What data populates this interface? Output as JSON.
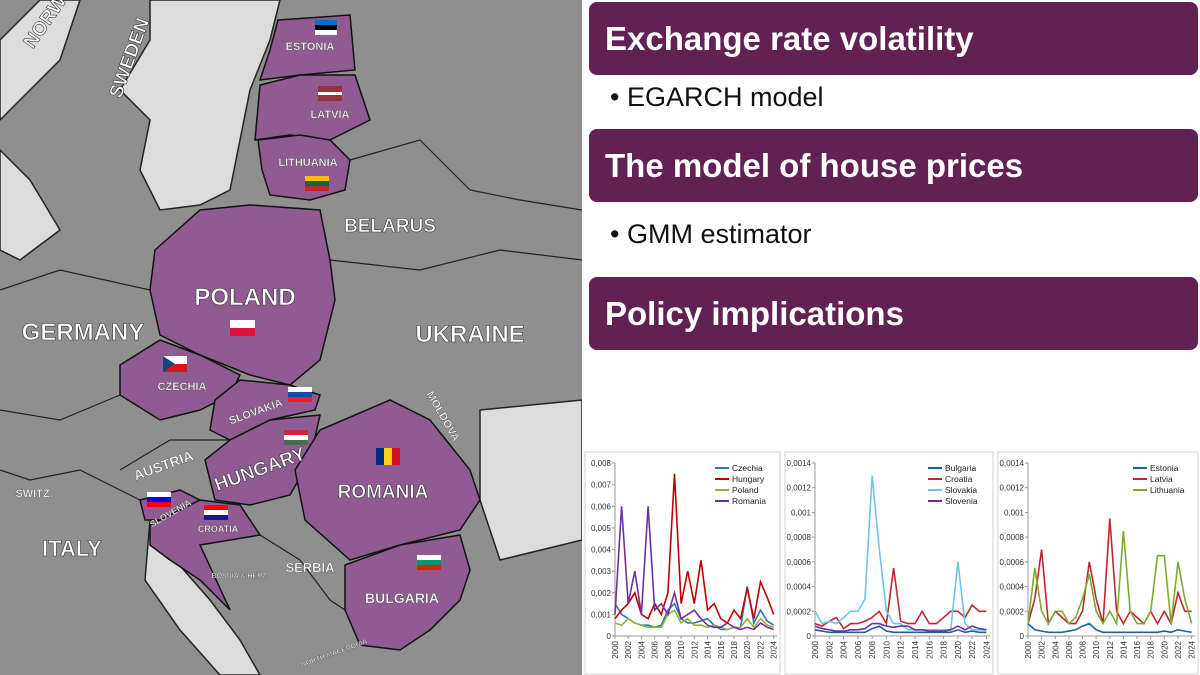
{
  "slide": {
    "sections": [
      {
        "heading": "Exchange rate volatility",
        "bullet": "EGARCH model"
      },
      {
        "heading": "The model of house prices",
        "bullet": "GMM estimator"
      },
      {
        "heading": "Policy implications"
      }
    ]
  },
  "map": {
    "labels": [
      "NORW",
      "SWEDEN",
      "ESTONIA",
      "LATVIA",
      "LITHUANIA",
      "BELARUS",
      "POLAND",
      "GERMANY",
      "UKRAINE",
      "CZECHIA",
      "SLOVAKIA",
      "AUSTRIA",
      "HUNGARY",
      "ROMANIA",
      "MOLDOVA",
      "SWITZ.",
      "SLOVENIA",
      "CROATIA",
      "ITALY",
      "SERBIA",
      "BULGARIA",
      "BOSNIA & HERZ.",
      "NORTH MACEDONIA"
    ]
  },
  "chart_data": [
    {
      "type": "line",
      "x": [
        2000,
        2001,
        2002,
        2003,
        2004,
        2005,
        2006,
        2007,
        2008,
        2009,
        2010,
        2011,
        2012,
        2013,
        2014,
        2015,
        2016,
        2017,
        2018,
        2019,
        2020,
        2021,
        2022,
        2023,
        2024
      ],
      "xlim": [
        2000,
        2024.5
      ],
      "xticks": [
        2000,
        2002,
        2004,
        2006,
        2008,
        2010,
        2012,
        2014,
        2016,
        2018,
        2020,
        2022,
        2024
      ],
      "ylim": [
        0,
        0.008
      ],
      "yticks": [
        0,
        {
          "value": 0.001,
          "label": "0,001"
        },
        {
          "value": 0.002,
          "label": "0,002"
        },
        {
          "value": 0.003,
          "label": "0,003"
        },
        {
          "value": 0.004,
          "label": "0,004"
        },
        {
          "value": 0.005,
          "label": "0,005"
        },
        {
          "value": 0.006,
          "label": "0,006"
        },
        {
          "value": 0.007,
          "label": "0,007"
        },
        {
          "value": 0.008,
          "label": "0,008"
        }
      ],
      "series": [
        {
          "name": "Czechia",
          "color": "#2e75b6",
          "values": [
            0.0015,
            0.001,
            0.0008,
            0.0006,
            0.0005,
            0.0005,
            0.0004,
            0.0005,
            0.0012,
            0.0015,
            0.0008,
            0.0006,
            0.0006,
            0.0007,
            0.0008,
            0.0005,
            0.0003,
            0.0003,
            0.0004,
            0.0004,
            0.0023,
            0.0006,
            0.0012,
            0.0007,
            0.0005
          ]
        },
        {
          "name": "Hungary",
          "color": "#c00000",
          "values": [
            0.0008,
            0.0012,
            0.0015,
            0.002,
            0.001,
            0.0008,
            0.0015,
            0.001,
            0.002,
            0.0075,
            0.0015,
            0.003,
            0.0015,
            0.0035,
            0.0012,
            0.0015,
            0.0008,
            0.0006,
            0.0012,
            0.0008,
            0.0022,
            0.0008,
            0.0025,
            0.0018,
            0.001
          ]
        },
        {
          "name": "Poland",
          "color": "#8fb339",
          "values": [
            0.0006,
            0.0005,
            0.0008,
            0.0006,
            0.0005,
            0.0004,
            0.0004,
            0.0004,
            0.001,
            0.0012,
            0.0006,
            0.0008,
            0.0005,
            0.0005,
            0.0004,
            0.0005,
            0.0004,
            0.0003,
            0.0004,
            0.0004,
            0.0008,
            0.0004,
            0.0008,
            0.0005,
            0.0004
          ]
        },
        {
          "name": "Romania",
          "color": "#7030a0",
          "values": [
            0.001,
            0.006,
            0.0015,
            0.003,
            0.001,
            0.006,
            0.0012,
            0.0015,
            0.001,
            0.002,
            0.0008,
            0.001,
            0.0012,
            0.0008,
            0.0005,
            0.0004,
            0.0004,
            0.0006,
            0.0004,
            0.0003,
            0.0004,
            0.0003,
            0.0006,
            0.0004,
            0.0003
          ]
        }
      ]
    },
    {
      "type": "line",
      "x": [
        2000,
        2001,
        2002,
        2003,
        2004,
        2005,
        2006,
        2007,
        2008,
        2009,
        2010,
        2011,
        2012,
        2013,
        2014,
        2015,
        2016,
        2017,
        2018,
        2019,
        2020,
        2021,
        2022,
        2023,
        2024
      ],
      "xlim": [
        2000,
        2024.5
      ],
      "xticks": [
        2000,
        2002,
        2004,
        2006,
        2008,
        2010,
        2012,
        2014,
        2016,
        2018,
        2020,
        2022,
        2024
      ],
      "ylim": [
        0,
        0.0014
      ],
      "yticks": [
        0,
        {
          "value": 0.0002,
          "label": "0,0002"
        },
        {
          "value": 0.0004,
          "label": "0,0004"
        },
        {
          "value": 0.0006,
          "label": "0,0006"
        },
        {
          "value": 0.0008,
          "label": "0,0008"
        },
        {
          "value": 0.001,
          "label": "0,001"
        },
        {
          "value": 0.0012,
          "label": "0,0012"
        },
        {
          "value": 0.0014,
          "label": "0,0014"
        }
      ],
      "series": [
        {
          "name": "Bulgaria",
          "color": "#1f5fa8",
          "values": [
            5e-05,
            4e-05,
            3e-05,
            3e-05,
            3e-05,
            3e-05,
            3e-05,
            3e-05,
            6e-05,
            8e-05,
            4e-05,
            3e-05,
            3e-05,
            3e-05,
            3e-05,
            3e-05,
            3e-05,
            3e-05,
            3e-05,
            3e-05,
            5e-05,
            3e-05,
            4e-05,
            3e-05,
            3e-05
          ]
        },
        {
          "name": "Croatia",
          "color": "#c0282d",
          "values": [
            0.0001,
            8e-05,
            0.00012,
            0.00015,
            6e-05,
            0.0001,
            0.0001,
            0.00012,
            0.00015,
            0.0002,
            0.0001,
            0.00055,
            0.00012,
            0.0001,
            0.0001,
            0.0002,
            0.0001,
            0.0001,
            0.00015,
            0.0002,
            0.0002,
            0.00015,
            0.00025,
            0.0002,
            0.0002
          ]
        },
        {
          "name": "Slovakia",
          "color": "#6ec6e8",
          "values": [
            0.0002,
            0.0001,
            0.00012,
            0.0001,
            0.00015,
            0.0002,
            0.0002,
            0.0003,
            0.0013,
            0.0007,
            0.0002,
            0.0001,
            0.0001,
            5e-05,
            5e-05,
            5e-05,
            5e-05,
            5e-05,
            5e-05,
            5e-05,
            0.0006,
            0.0001,
            5e-05,
            5e-05,
            5e-05
          ]
        },
        {
          "name": "Slovenia",
          "color": "#7030a0",
          "values": [
            8e-05,
            6e-05,
            5e-05,
            4e-05,
            4e-05,
            5e-05,
            5e-05,
            6e-05,
            0.0001,
            0.0001,
            8e-05,
            7e-05,
            8e-05,
            8e-05,
            5e-05,
            5e-05,
            4e-05,
            4e-05,
            4e-05,
            5e-05,
            8e-05,
            5e-05,
            8e-05,
            6e-05,
            5e-05
          ]
        }
      ]
    },
    {
      "type": "line",
      "x": [
        2000,
        2001,
        2002,
        2003,
        2004,
        2005,
        2006,
        2007,
        2008,
        2009,
        2010,
        2011,
        2012,
        2013,
        2014,
        2015,
        2016,
        2017,
        2018,
        2019,
        2020,
        2021,
        2022,
        2023,
        2024
      ],
      "xlim": [
        2000,
        2024.5
      ],
      "xticks": [
        2000,
        2002,
        2004,
        2006,
        2008,
        2010,
        2012,
        2014,
        2016,
        2018,
        2020,
        2022,
        2024
      ],
      "ylim": [
        0,
        0.0014
      ],
      "yticks": [
        0,
        {
          "value": 0.0002,
          "label": "0,0002"
        },
        {
          "value": 0.0004,
          "label": "0,0004"
        },
        {
          "value": 0.0006,
          "label": "0,0006"
        },
        {
          "value": 0.0008,
          "label": "0,0008"
        },
        {
          "value": 0.001,
          "label": "0,001"
        },
        {
          "value": 0.0012,
          "label": "0,0012"
        },
        {
          "value": 0.0014,
          "label": "0,0014"
        }
      ],
      "series": [
        {
          "name": "Estonia",
          "color": "#1f5fa8",
          "values": [
            0.0001,
            5e-05,
            4e-05,
            3e-05,
            3e-05,
            3e-05,
            4e-05,
            5e-05,
            8e-05,
            0.0001,
            5e-05,
            3e-05,
            3e-05,
            3e-05,
            3e-05,
            3e-05,
            3e-05,
            3e-05,
            3e-05,
            3e-05,
            4e-05,
            3e-05,
            5e-05,
            4e-05,
            3e-05
          ]
        },
        {
          "name": "Latvia",
          "color": "#c0282d",
          "values": [
            0.0001,
            0.0003,
            0.0007,
            0.0001,
            0.0002,
            0.00015,
            0.0001,
            0.0001,
            0.0002,
            0.0006,
            0.0003,
            0.0001,
            0.00095,
            0.0002,
            0.0001,
            0.0002,
            0.00015,
            0.0001,
            0.0002,
            0.0001,
            0.0002,
            0.0001,
            0.00035,
            0.0002,
            0.0002
          ]
        },
        {
          "name": "Lithuania",
          "color": "#7cac2f",
          "values": [
            0.0001,
            0.00055,
            0.0002,
            0.0001,
            0.0002,
            0.0002,
            0.0001,
            0.00015,
            0.0003,
            0.0005,
            0.0002,
            0.0001,
            0.0002,
            0.0001,
            0.00085,
            0.0002,
            0.0001,
            0.0001,
            0.0002,
            0.00065,
            0.00065,
            0.0001,
            0.0006,
            0.0003,
            0.0001
          ]
        }
      ]
    }
  ]
}
